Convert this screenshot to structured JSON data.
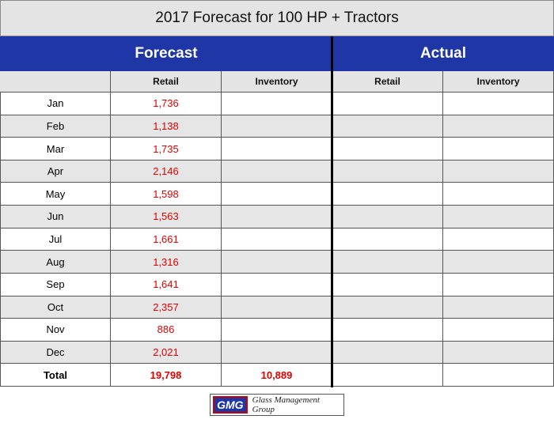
{
  "title": "2017 Forecast for 100 HP + Tractors",
  "table": {
    "groups": [
      "Forecast",
      "Actual"
    ],
    "columns": [
      "Retail",
      "Inventory",
      "Retail",
      "Inventory"
    ],
    "rows": [
      [
        "Jan",
        "1,736"
      ],
      [
        "Feb",
        "1,138"
      ],
      [
        "Mar",
        "1,735"
      ],
      [
        "Apr",
        "2,146"
      ],
      [
        "May",
        "1,598"
      ],
      [
        "Jun",
        "1,563"
      ],
      [
        "Jul",
        "1,661"
      ],
      [
        "Aug",
        "1,316"
      ],
      [
        "Sep",
        "1,641"
      ],
      [
        "Oct",
        "2,357"
      ],
      [
        "Nov",
        "886"
      ],
      [
        "Dec",
        "2,021"
      ]
    ],
    "total": [
      "Total",
      "19,798",
      "10,889"
    ]
  },
  "logo": {
    "mark": "GMG",
    "name": "Glass Management Group"
  }
}
